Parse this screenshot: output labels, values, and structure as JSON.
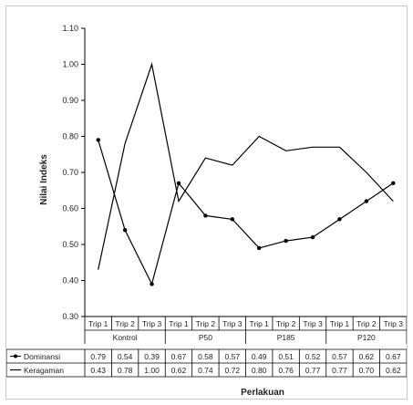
{
  "chart_data": {
    "type": "line",
    "ylabel": "Nilai Indeks",
    "xlabel": "Perlakuan",
    "ylim": [
      0.3,
      1.1
    ],
    "yticks": [
      "0.30",
      "0.40",
      "0.50",
      "0.60",
      "0.70",
      "0.80",
      "0.90",
      "1.00",
      "1.10"
    ],
    "categories": [
      "Trip 1",
      "Trip 2",
      "Trip 3",
      "Trip 1",
      "Trip 2",
      "Trip 3",
      "Trip 1",
      "Trip 2",
      "Trip 3",
      "Trip 1",
      "Trip 2",
      "Trip 3"
    ],
    "groups": [
      {
        "label": "Kontrol",
        "span": 3
      },
      {
        "label": "P50",
        "span": 3
      },
      {
        "label": "P185",
        "span": 3
      },
      {
        "label": "P120",
        "span": 3
      }
    ],
    "series": [
      {
        "name": "Dominansi",
        "color": "#000000",
        "marker": "circle",
        "values": [
          0.79,
          0.54,
          0.39,
          0.67,
          0.58,
          0.57,
          0.49,
          0.51,
          0.52,
          0.57,
          0.62,
          0.67
        ],
        "labels": [
          "0.79",
          "0.54",
          "0.39",
          "0.67",
          "0.58",
          "0.57",
          "0.49",
          "0.51",
          "0.52",
          "0.57",
          "0.62",
          "0.67"
        ]
      },
      {
        "name": "Keragaman",
        "color": "#000000",
        "marker": "none",
        "values": [
          0.43,
          0.78,
          1.0,
          0.62,
          0.74,
          0.72,
          0.8,
          0.76,
          0.77,
          0.77,
          0.7,
          0.62
        ],
        "labels": [
          "0.43",
          "0.78",
          "1.00",
          "0.62",
          "0.74",
          "0.72",
          "0.80",
          "0.76",
          "0.77",
          "0.77",
          "0.70",
          "0.62"
        ]
      }
    ],
    "grid": false,
    "legend": "data-table"
  }
}
